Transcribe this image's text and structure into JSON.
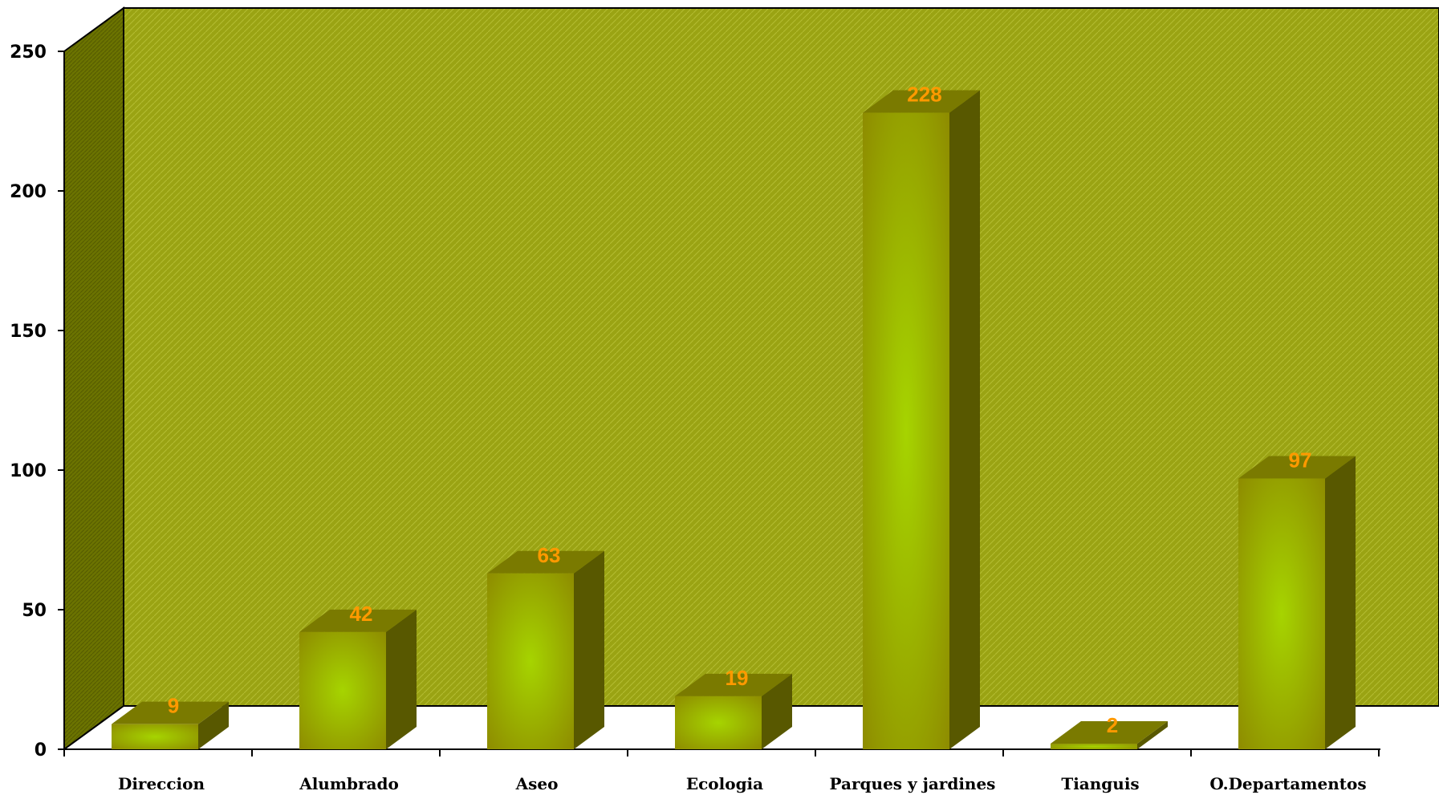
{
  "chart_data": {
    "type": "bar",
    "categories": [
      "Direccion",
      "Alumbrado",
      "Aseo",
      "Ecologia",
      "Parques y jardines",
      "Tianguis",
      "O.Departamentos"
    ],
    "values": [
      9,
      42,
      63,
      19,
      228,
      2,
      97
    ],
    "ylim": [
      0,
      250
    ],
    "yticks": [
      "0",
      "50",
      "100",
      "150",
      "200",
      "250"
    ],
    "data_labels": [
      "9",
      "42",
      "63",
      "19",
      "228",
      "2",
      "97"
    ],
    "grid": false,
    "legend": "none",
    "colors": {
      "wall": "#9aa313",
      "wall_pattern": "#c9d24a",
      "side_wall": "#6b7300",
      "bar_front_edge": "#9c9f00",
      "bar_front_center": "#a6d400",
      "bar_top": "#7a7a00",
      "bar_side": "#585800",
      "label": "#ff9900"
    }
  }
}
